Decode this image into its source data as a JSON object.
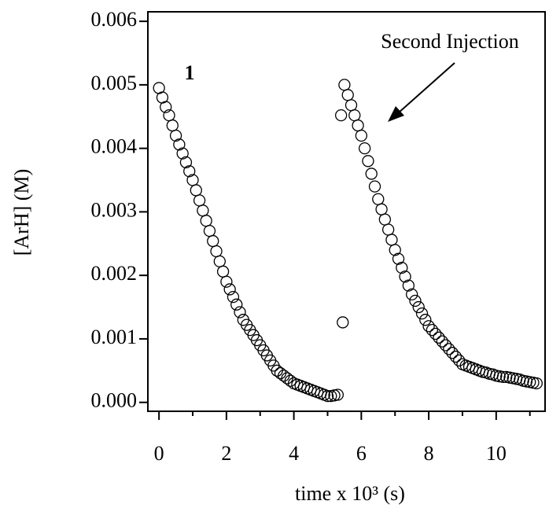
{
  "chart_data": {
    "type": "scatter",
    "ylabel": "[ArH] (M)",
    "xlabel": "time x 10³ (s)",
    "annotations": [
      "Second Injection",
      "1"
    ],
    "color": "#000000",
    "xlim": [
      -0.33,
      11.45
    ],
    "ylim": [
      -0.00014,
      0.00615
    ],
    "xticks": [
      0,
      2,
      4,
      6,
      8,
      10
    ],
    "xminorticks": [
      1,
      3,
      5,
      7,
      9,
      11
    ],
    "yticks": [
      {
        "value": 0,
        "label": "0.000"
      },
      {
        "value": 0.001,
        "label": "0.001"
      },
      {
        "value": 0.002,
        "label": "0.002"
      },
      {
        "value": 0.003,
        "label": "0.003"
      },
      {
        "value": 0.004,
        "label": "0.004"
      },
      {
        "value": 0.005,
        "label": "0.005"
      },
      {
        "value": 0.006,
        "label": "0.006"
      }
    ],
    "x": [
      0,
      0.1,
      0.2,
      0.3,
      0.4,
      0.5,
      0.6,
      0.7,
      0.8,
      0.9,
      1.0,
      1.1,
      1.2,
      1.3,
      1.4,
      1.5,
      1.6,
      1.7,
      1.8,
      1.9,
      2.0,
      2.1,
      2.2,
      2.3,
      2.4,
      2.5,
      2.6,
      2.7,
      2.8,
      2.9,
      3.0,
      3.1,
      3.2,
      3.3,
      3.4,
      3.5,
      3.6,
      3.7,
      3.8,
      3.9,
      4.0,
      4.1,
      4.2,
      4.3,
      4.4,
      4.5,
      4.6,
      4.7,
      4.8,
      4.9,
      5.0,
      5.1,
      5.2,
      5.3,
      5.4,
      5.45,
      5.5,
      5.6,
      5.7,
      5.8,
      5.9,
      6.0,
      6.1,
      6.2,
      6.3,
      6.4,
      6.5,
      6.6,
      6.7,
      6.8,
      6.9,
      7.0,
      7.1,
      7.2,
      7.3,
      7.4,
      7.5,
      7.6,
      7.7,
      7.8,
      7.9,
      8.0,
      8.1,
      8.2,
      8.3,
      8.4,
      8.5,
      8.6,
      8.7,
      8.8,
      8.9,
      9.0,
      9.1,
      9.2,
      9.3,
      9.4,
      9.5,
      9.6,
      9.7,
      9.8,
      9.9,
      10.0,
      10.1,
      10.2,
      10.3,
      10.4,
      10.5,
      10.6,
      10.7,
      10.8,
      10.9,
      11.0,
      11.1,
      11.2
    ],
    "values": [
      0.00495,
      0.0048,
      0.00465,
      0.00452,
      0.00436,
      0.0042,
      0.00406,
      0.00392,
      0.00378,
      0.00364,
      0.0035,
      0.00334,
      0.00318,
      0.00302,
      0.00286,
      0.0027,
      0.00254,
      0.00238,
      0.00222,
      0.00206,
      0.0019,
      0.00178,
      0.00166,
      0.00154,
      0.00142,
      0.0013,
      0.00122,
      0.00114,
      0.00106,
      0.00098,
      0.0009,
      0.00082,
      0.00074,
      0.00066,
      0.00058,
      0.0005,
      0.00046,
      0.00042,
      0.00038,
      0.00034,
      0.0003,
      0.00028,
      0.00026,
      0.00024,
      0.00022,
      0.0002,
      0.00018,
      0.00016,
      0.00014,
      0.00012,
      0.0001,
      0.0001,
      0.00011,
      0.00012,
      0.00452,
      0.00126,
      0.005,
      0.00484,
      0.00468,
      0.00452,
      0.00436,
      0.0042,
      0.004,
      0.0038,
      0.0036,
      0.0034,
      0.0032,
      0.00304,
      0.00288,
      0.00272,
      0.00256,
      0.0024,
      0.00226,
      0.00212,
      0.00198,
      0.00184,
      0.0017,
      0.0016,
      0.0015,
      0.0014,
      0.0013,
      0.0012,
      0.00114,
      0.00108,
      0.00102,
      0.00096,
      0.0009,
      0.00084,
      0.00078,
      0.00072,
      0.00066,
      0.0006,
      0.00058,
      0.00056,
      0.00054,
      0.00052,
      0.0005,
      0.00048,
      0.00047,
      0.00045,
      0.00044,
      0.00042,
      0.00041,
      0.0004,
      0.0004,
      0.00039,
      0.00038,
      0.00037,
      0.00036,
      0.00034,
      0.00033,
      0.00032,
      0.00031,
      0.0003
    ]
  }
}
